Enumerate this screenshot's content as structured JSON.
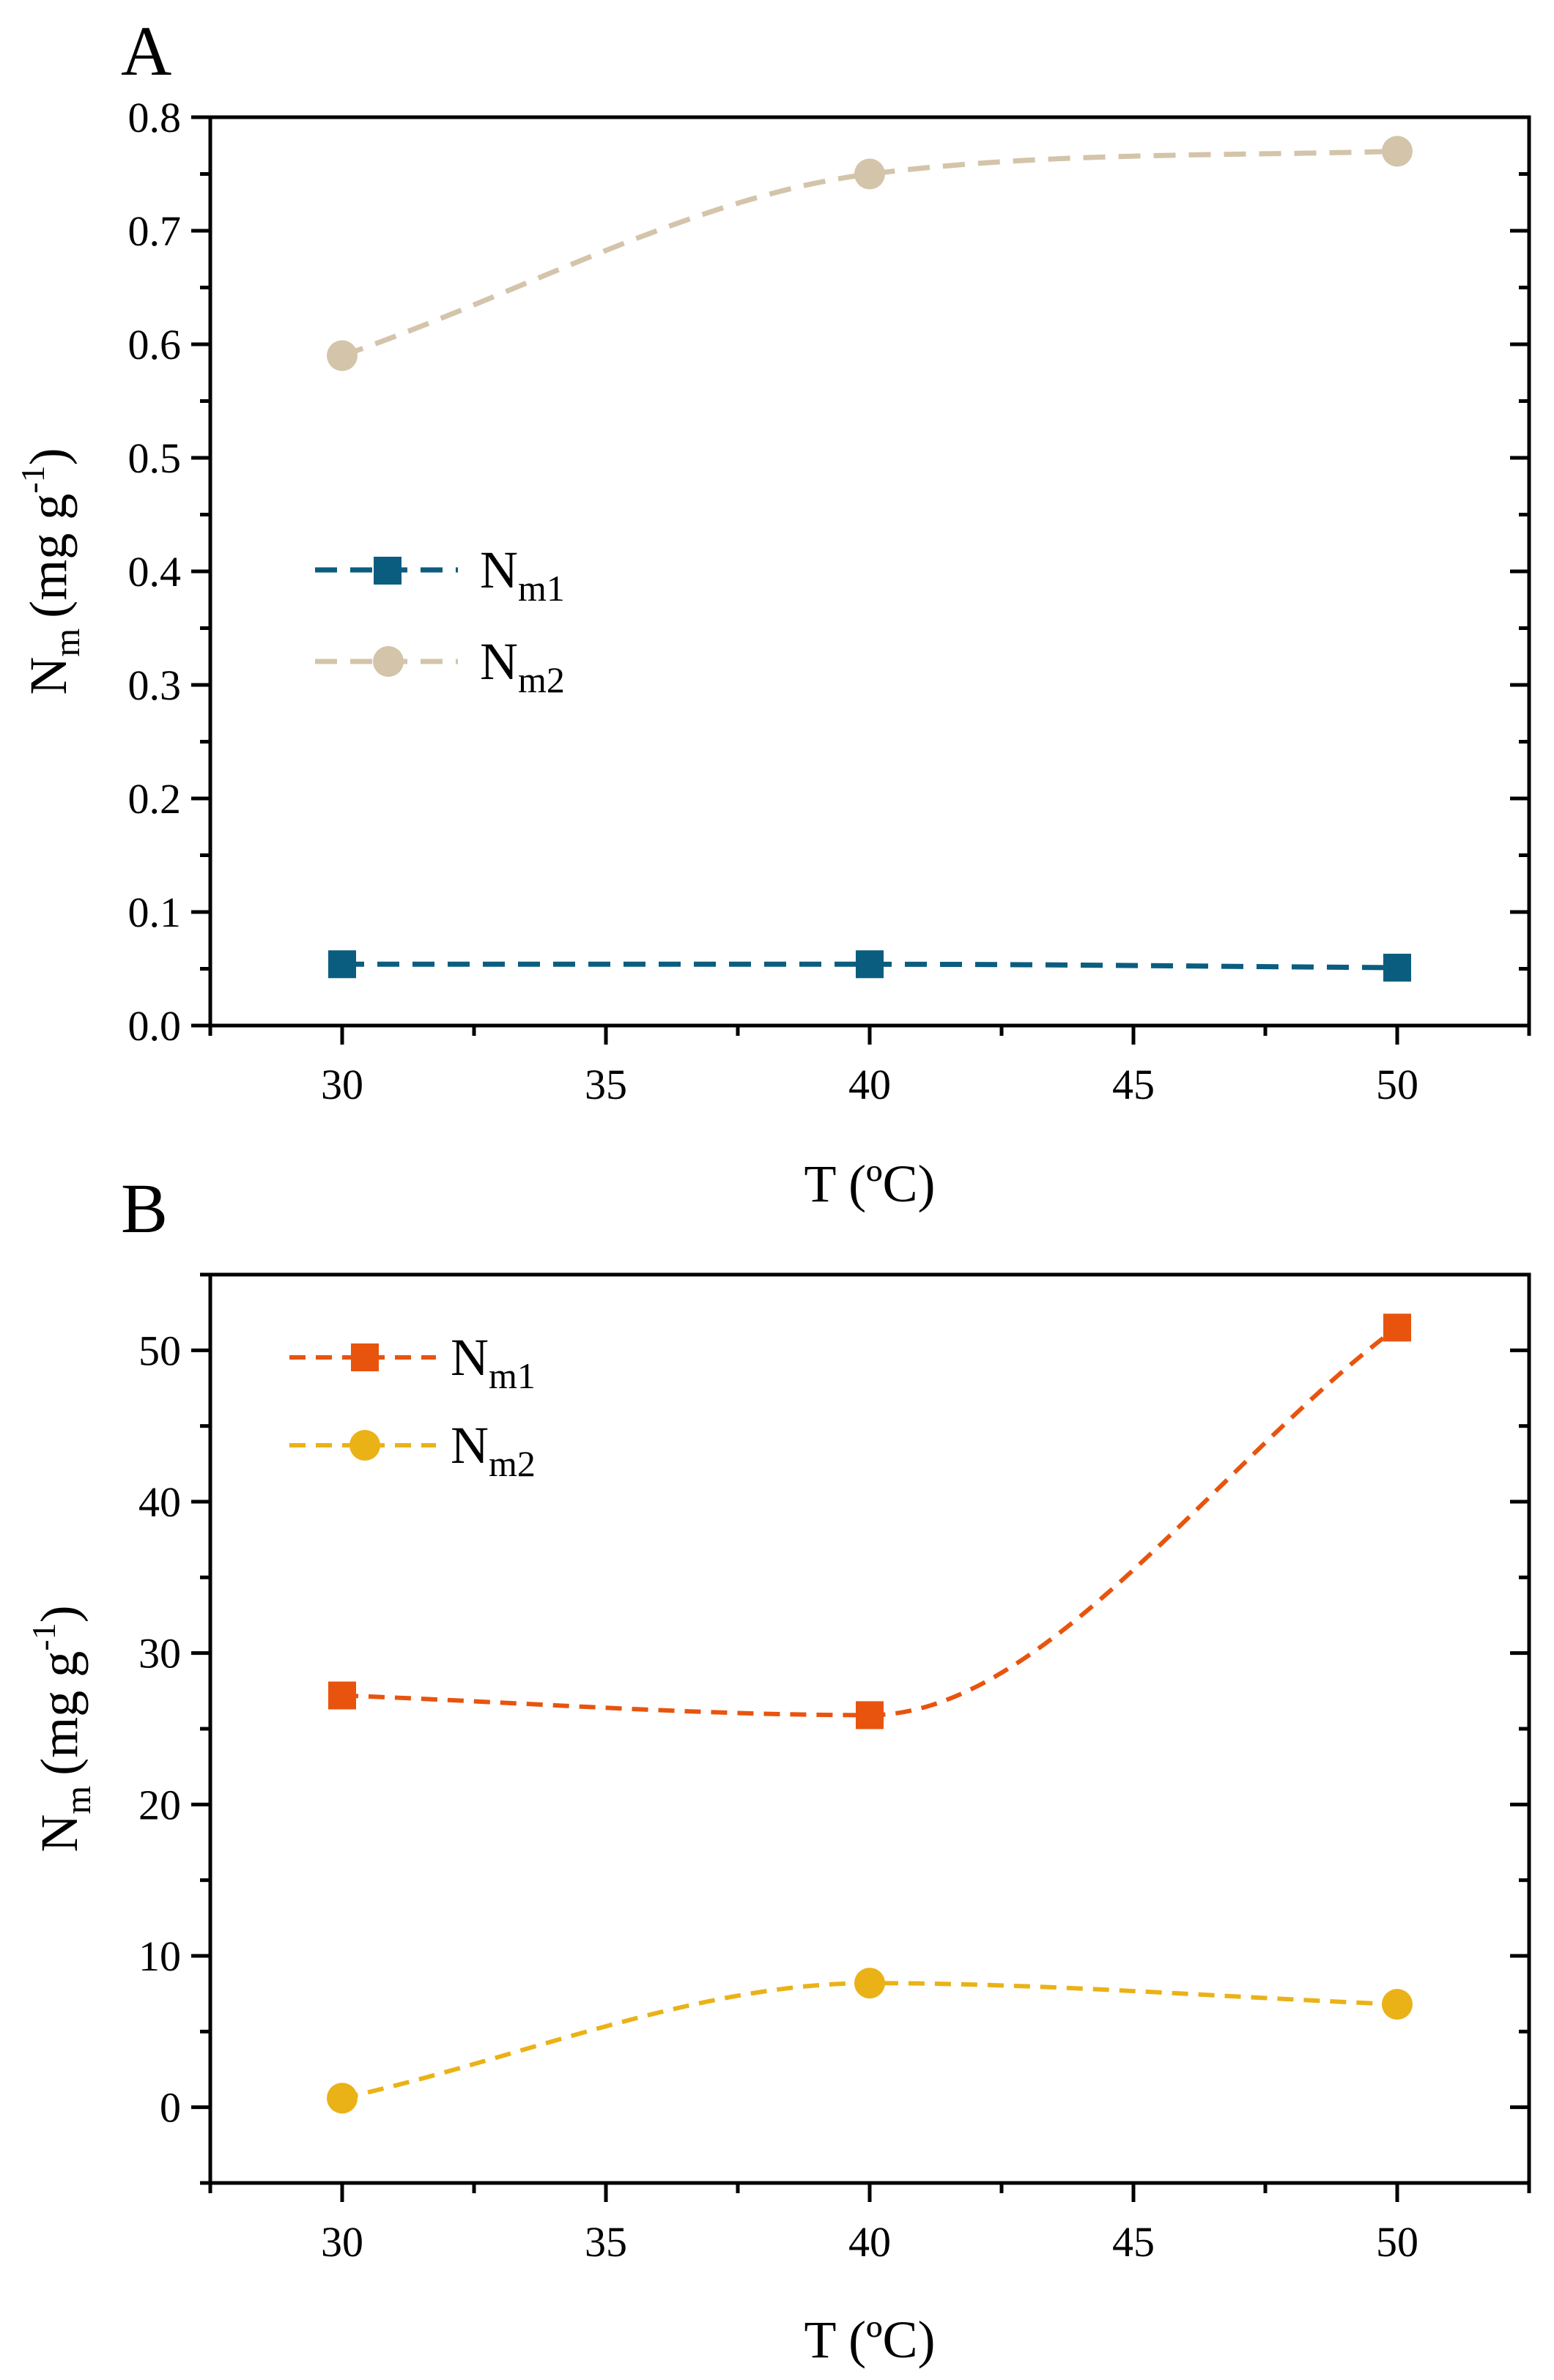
{
  "chart_data": [
    {
      "panel": "A",
      "type": "line",
      "xlabel": "T (ºC)",
      "ylabel_main": "N",
      "ylabel_sub": "m",
      "ylabel_unit": "(mg g",
      "ylabel_sup": "-1",
      "ylabel_close": ")",
      "xlim": [
        27.5,
        52.5
      ],
      "ylim": [
        0,
        0.8
      ],
      "xticks": [
        30,
        35,
        40,
        45,
        50
      ],
      "xtick_labels": [
        "30",
        "35",
        "40",
        "45",
        "50"
      ],
      "yticks": [
        0,
        0.1,
        0.2,
        0.3,
        0.4,
        0.5,
        0.6,
        0.7,
        0.8
      ],
      "ytick_labels": [
        "0.0",
        "0.1",
        "0.2",
        "0.3",
        "0.4",
        "0.5",
        "0.6",
        "0.7",
        "0.8"
      ],
      "legend_position": "center-left",
      "series": [
        {
          "name": "N",
          "name_sub": "m1",
          "marker": "square",
          "color": "#0b5d7f",
          "x": [
            30,
            40,
            50
          ],
          "y": [
            0.054,
            0.054,
            0.051
          ]
        },
        {
          "name": "N",
          "name_sub": "m2",
          "marker": "circle",
          "color": "#d3c4aa",
          "x": [
            30,
            40,
            50
          ],
          "y": [
            0.59,
            0.75,
            0.77
          ]
        }
      ]
    },
    {
      "panel": "B",
      "type": "line",
      "xlabel": "T (ºC)",
      "ylabel_main": "N",
      "ylabel_sub": "m",
      "ylabel_unit": "(mg g",
      "ylabel_sup": "-1",
      "ylabel_close": ")",
      "xlim": [
        27.5,
        52.5
      ],
      "ylim": [
        -5,
        55
      ],
      "xticks": [
        30,
        35,
        40,
        45,
        50
      ],
      "xtick_labels": [
        "30",
        "35",
        "40",
        "45",
        "50"
      ],
      "yticks": [
        0,
        10,
        20,
        30,
        40,
        50
      ],
      "ytick_labels": [
        "0",
        "10",
        "20",
        "30",
        "40",
        "50"
      ],
      "legend_position": "top-left",
      "series": [
        {
          "name": "N",
          "name_sub": "m1",
          "marker": "square",
          "color": "#e8540e",
          "x": [
            30,
            40,
            50
          ],
          "y": [
            27.2,
            25.9,
            51.5
          ]
        },
        {
          "name": "N",
          "name_sub": "m2",
          "marker": "circle",
          "color": "#eab217",
          "x": [
            30,
            40,
            50
          ],
          "y": [
            0.6,
            8.2,
            6.8
          ]
        }
      ]
    }
  ]
}
